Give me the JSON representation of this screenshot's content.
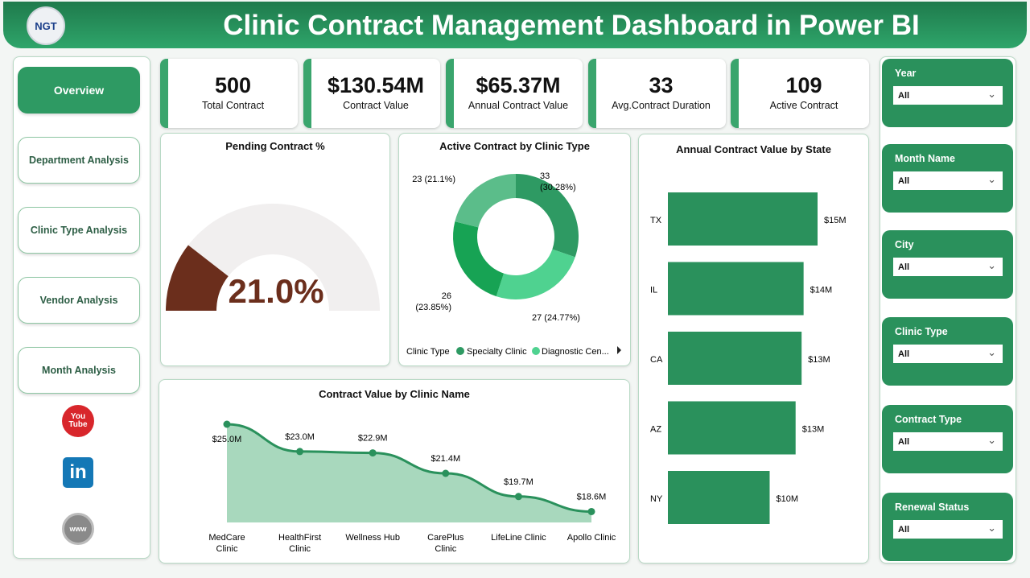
{
  "header": {
    "title": "Clinic Contract Management Dashboard in Power BI",
    "logo_text": "NGT"
  },
  "nav": [
    {
      "label": "Overview",
      "active": true
    },
    {
      "label": "Department Analysis"
    },
    {
      "label": "Clinic Type Analysis"
    },
    {
      "label": "Vendor Analysis"
    },
    {
      "label": "Month Analysis"
    }
  ],
  "social": [
    {
      "icon": "youtube-icon",
      "label": "You Tube"
    },
    {
      "icon": "linkedin-icon",
      "label": "in"
    },
    {
      "icon": "globe-icon",
      "label": "www"
    }
  ],
  "kpis": [
    {
      "value": "500",
      "label": "Total Contract"
    },
    {
      "value": "$130.54M",
      "label": "Contract Value"
    },
    {
      "value": "$65.37M",
      "label": "Annual Contract Value"
    },
    {
      "value": "33",
      "label": "Avg.Contract Duration"
    },
    {
      "value": "109",
      "label": "Active Contract"
    }
  ],
  "slicers": [
    {
      "label": "Year",
      "value": "All"
    },
    {
      "label": "Month Name",
      "value": "All"
    },
    {
      "label": "City",
      "value": "All"
    },
    {
      "label": "Clinic Type",
      "value": "All"
    },
    {
      "label": "Contract Type",
      "value": "All"
    },
    {
      "label": "Renewal Status",
      "value": "All"
    }
  ],
  "colors": {
    "accent": "#2e9a63",
    "gauge_fill": "#6b2e1c",
    "gauge_track": "#f1efef",
    "area": "#a8d8bd"
  },
  "chart_data": [
    {
      "type": "gauge",
      "title": "Pending Contract %",
      "value": 21.0,
      "label": "21.0%",
      "range": [
        0,
        100
      ]
    },
    {
      "type": "pie",
      "title": "Active Contract by Clinic Type",
      "legend_title": "Clinic Type",
      "legend": [
        "Specialty Clinic",
        "Diagnostic Cen..."
      ],
      "slices": [
        {
          "value": 33,
          "label": "33",
          "pct": "(30.28%)",
          "color": "#2e9a63"
        },
        {
          "value": 27,
          "label": "27",
          "pct": "(24.77%)",
          "color": "#4fd290"
        },
        {
          "value": 26,
          "label": "26",
          "pct": "(23.85%)",
          "color": "#17a354"
        },
        {
          "value": 23,
          "label": "23",
          "pct": "(21.1%)",
          "color": "#5bbd8a"
        }
      ]
    },
    {
      "type": "bar",
      "orientation": "horizontal",
      "title": "Annual Contract Value by State",
      "categories": [
        "TX",
        "IL",
        "CA",
        "AZ",
        "NY"
      ],
      "values": [
        15.0,
        13.6,
        13.4,
        12.8,
        10.2
      ],
      "labels": [
        "$15M",
        "$14M",
        "$13M",
        "$13M",
        "$10M"
      ],
      "color": "#2a915c"
    },
    {
      "type": "area",
      "title": "Contract Value by Clinic Name",
      "categories": [
        [
          "MedCare",
          "Clinic"
        ],
        [
          "HealthFirst",
          "Clinic"
        ],
        [
          "Wellness Hub"
        ],
        [
          "CarePlus",
          "Clinic"
        ],
        [
          "LifeLine Clinic"
        ],
        [
          "Apollo Clinic"
        ]
      ],
      "values": [
        25.0,
        23.0,
        22.9,
        21.4,
        19.7,
        18.6
      ],
      "labels": [
        "$25.0M",
        "$23.0M",
        "$22.9M",
        "$21.4M",
        "$19.7M",
        "$18.6M"
      ],
      "ylim": [
        17.8,
        25.0
      ]
    }
  ]
}
